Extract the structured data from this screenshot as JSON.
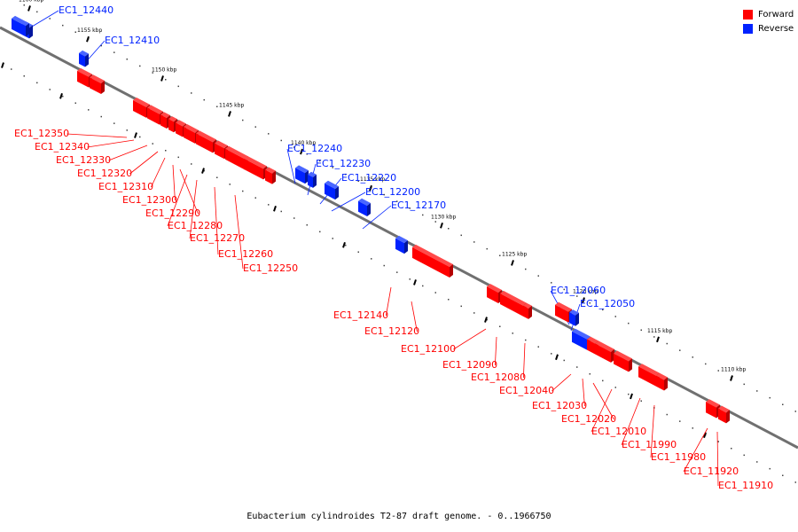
{
  "legend": {
    "forward": {
      "label": "Forward",
      "color": "#ff0000"
    },
    "reverse": {
      "label": "Reverse",
      "color": "#0022ff"
    }
  },
  "caption": "Eubacterium cylindroides T2-87 draft genome. - 0..1966750",
  "scale": {
    "ticks": [
      {
        "label": "1160 kbp"
      },
      {
        "label": "1155 kbp"
      },
      {
        "label": "1150 kbp"
      },
      {
        "label": "1145 kbp"
      },
      {
        "label": "1140 kbp"
      },
      {
        "label": "1135 kbp"
      },
      {
        "label": "1130 kbp"
      },
      {
        "label": "1125 kbp"
      },
      {
        "label": "1120 kbp"
      },
      {
        "label": "1115 kbp"
      },
      {
        "label": "1110 kbp"
      }
    ]
  },
  "genes": [
    {
      "name": "EC1_12440",
      "strand": "reverse"
    },
    {
      "name": "EC1_12410",
      "strand": "reverse"
    },
    {
      "name": "EC1_12350",
      "strand": "forward"
    },
    {
      "name": "EC1_12340",
      "strand": "forward"
    },
    {
      "name": "EC1_12330",
      "strand": "forward"
    },
    {
      "name": "EC1_12320",
      "strand": "forward"
    },
    {
      "name": "EC1_12310",
      "strand": "forward"
    },
    {
      "name": "EC1_12300",
      "strand": "forward"
    },
    {
      "name": "EC1_12290",
      "strand": "forward"
    },
    {
      "name": "EC1_12280",
      "strand": "forward"
    },
    {
      "name": "EC1_12270",
      "strand": "forward"
    },
    {
      "name": "EC1_12260",
      "strand": "forward"
    },
    {
      "name": "EC1_12250",
      "strand": "forward"
    },
    {
      "name": "EC1_12240",
      "strand": "reverse"
    },
    {
      "name": "EC1_12230",
      "strand": "reverse"
    },
    {
      "name": "EC1_12220",
      "strand": "reverse"
    },
    {
      "name": "EC1_12200",
      "strand": "reverse"
    },
    {
      "name": "EC1_12170",
      "strand": "reverse"
    },
    {
      "name": "EC1_12140",
      "strand": "forward"
    },
    {
      "name": "EC1_12120",
      "strand": "forward"
    },
    {
      "name": "EC1_12100",
      "strand": "forward"
    },
    {
      "name": "EC1_12090",
      "strand": "forward"
    },
    {
      "name": "EC1_12080",
      "strand": "forward"
    },
    {
      "name": "EC1_12060",
      "strand": "reverse"
    },
    {
      "name": "EC1_12050",
      "strand": "reverse"
    },
    {
      "name": "EC1_12040",
      "strand": "forward"
    },
    {
      "name": "EC1_12030",
      "strand": "forward"
    },
    {
      "name": "EC1_12020",
      "strand": "forward"
    },
    {
      "name": "EC1_12010",
      "strand": "forward"
    },
    {
      "name": "EC1_11990",
      "strand": "forward"
    },
    {
      "name": "EC1_11980",
      "strand": "forward"
    },
    {
      "name": "EC1_11920",
      "strand": "forward"
    },
    {
      "name": "EC1_11910",
      "strand": "forward"
    }
  ]
}
